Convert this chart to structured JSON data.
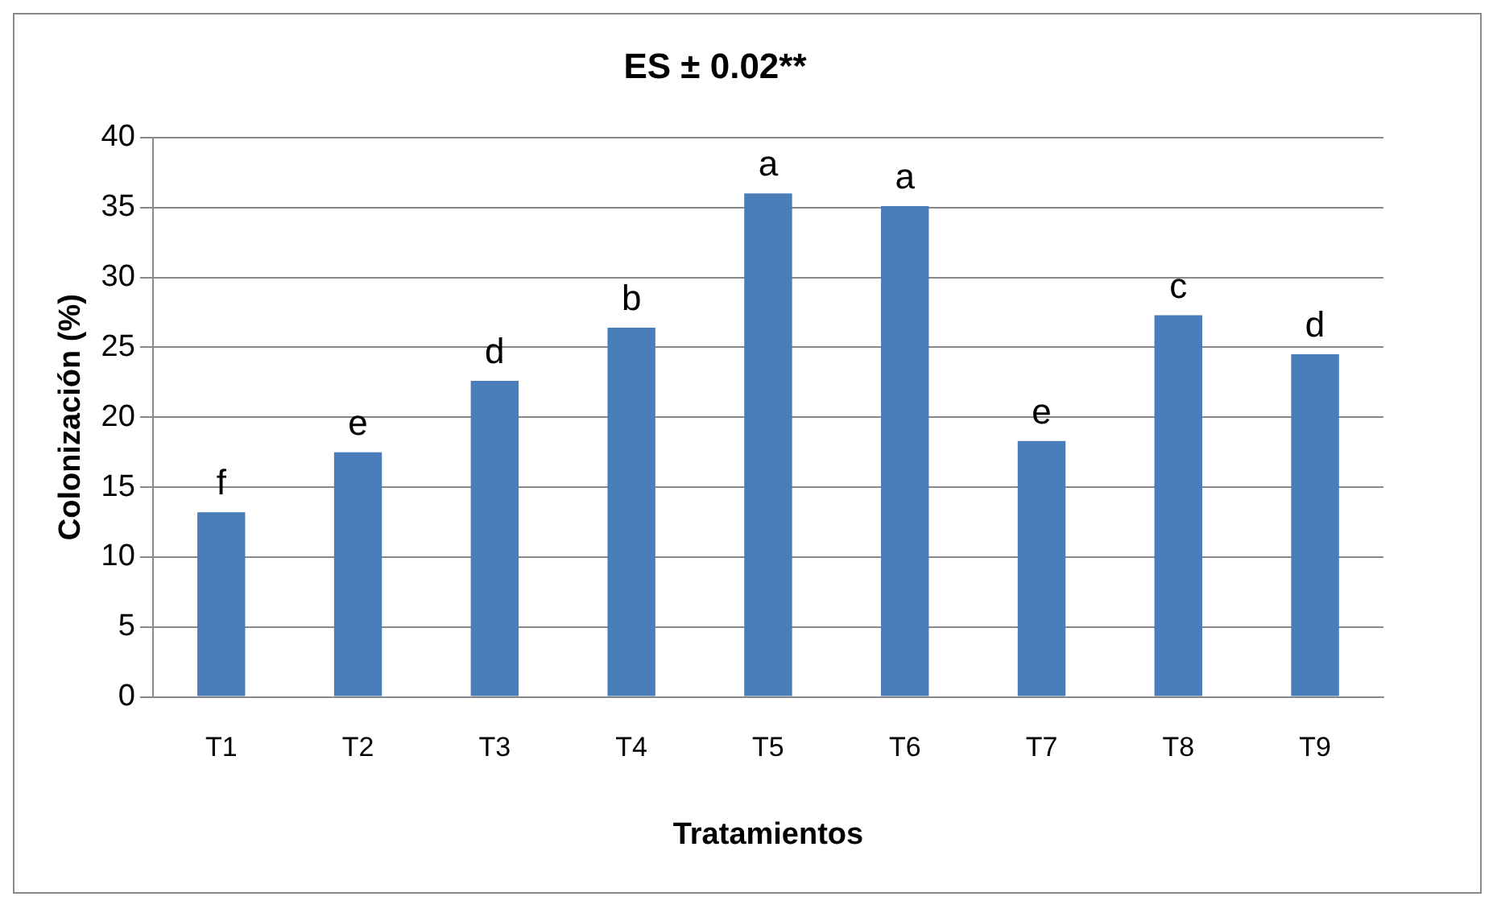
{
  "chart_data": {
    "type": "bar",
    "title": "ES ± 0.02**",
    "xlabel": "Tratamientos",
    "ylabel": "Colonización (%)",
    "categories": [
      "T1",
      "T2",
      "T3",
      "T4",
      "T5",
      "T6",
      "T7",
      "T8",
      "T9"
    ],
    "values": [
      13.2,
      17.5,
      22.6,
      26.4,
      36,
      35.1,
      18.3,
      27.3,
      24.5
    ],
    "color": "#4a7ebb",
    "ylim": [
      0,
      40
    ],
    "yticks": [
      0,
      5,
      10,
      15,
      20,
      25,
      30,
      35,
      40
    ],
    "grid": "y",
    "legend": false,
    "annotations": [
      {
        "text": "f",
        "x": "T1",
        "y": 13.2
      },
      {
        "text": "e",
        "x": "T2",
        "y": 17.5
      },
      {
        "text": "d",
        "x": "T3",
        "y": 22.6
      },
      {
        "text": "b",
        "x": "T4",
        "y": 26.4
      },
      {
        "text": "a",
        "x": "T5",
        "y": 36
      },
      {
        "text": "a",
        "x": "T6",
        "y": 35.1
      },
      {
        "text": "e",
        "x": "T7",
        "y": 18.3
      },
      {
        "text": "c",
        "x": "T8",
        "y": 27.3
      },
      {
        "text": "d",
        "x": "T9",
        "y": 24.5
      }
    ]
  }
}
